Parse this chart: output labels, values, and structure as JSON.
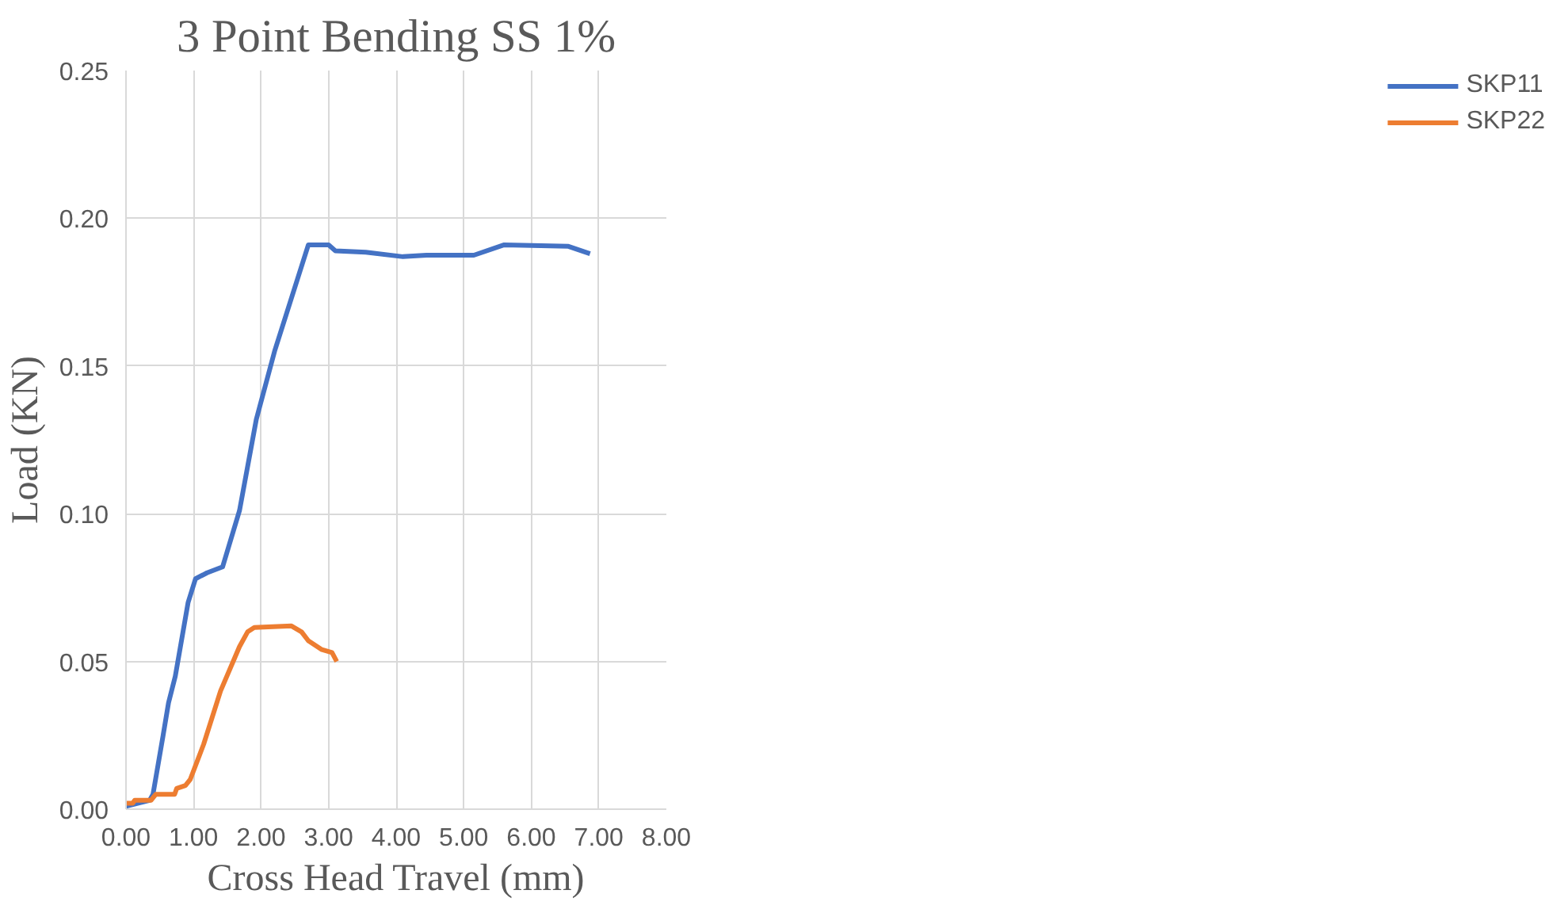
{
  "chart_data": {
    "type": "line",
    "title": "3 Point Bending SS 1%",
    "xlabel": "Cross Head Travel (mm)",
    "ylabel": "Load (KN)",
    "xlim": [
      0,
      8
    ],
    "ylim": [
      0,
      0.25
    ],
    "xticks": [
      {
        "value": 0,
        "label": "0.00"
      },
      {
        "value": 1,
        "label": "1.00"
      },
      {
        "value": 2,
        "label": "2.00"
      },
      {
        "value": 3,
        "label": "3.00"
      },
      {
        "value": 4,
        "label": "4.00"
      },
      {
        "value": 5,
        "label": "5.00"
      },
      {
        "value": 6,
        "label": "6.00"
      },
      {
        "value": 7,
        "label": "7.00"
      },
      {
        "value": 8,
        "label": "8.00"
      }
    ],
    "yticks": [
      {
        "value": 0,
        "label": "0.00"
      },
      {
        "value": 0.05,
        "label": "0.05"
      },
      {
        "value": 0.1,
        "label": "0.10"
      },
      {
        "value": 0.15,
        "label": "0.15"
      },
      {
        "value": 0.2,
        "label": "0.20"
      },
      {
        "value": 0.25,
        "label": "0.25"
      }
    ],
    "grid": true,
    "legend": "right",
    "marker": "none",
    "line_style": "solid",
    "series": [
      {
        "name": "SKP11",
        "color": "#4472c4",
        "x": [
          0,
          0.35,
          0.4,
          0.55,
          0.63,
          0.73,
          0.92,
          1.03,
          1.2,
          1.43,
          1.68,
          1.93,
          2.2,
          2.7,
          3.0,
          3.1,
          3.55,
          4.1,
          4.45,
          5.15,
          5.6,
          6.55,
          6.87
        ],
        "values": [
          0.001,
          0.003,
          0.005,
          0.025,
          0.036,
          0.045,
          0.07,
          0.078,
          0.08,
          0.082,
          0.101,
          0.132,
          0.155,
          0.191,
          0.191,
          0.189,
          0.1885,
          0.187,
          0.1875,
          0.1875,
          0.191,
          0.1905,
          0.188
        ]
      },
      {
        "name": "SKP22",
        "color": "#ed7d31",
        "x": [
          0,
          0.1,
          0.13,
          0.37,
          0.44,
          0.72,
          0.75,
          0.88,
          0.95,
          1.15,
          1.4,
          1.68,
          1.8,
          1.9,
          2.45,
          2.6,
          2.7,
          2.9,
          3.05,
          3.12
        ],
        "values": [
          0.002,
          0.002,
          0.003,
          0.003,
          0.005,
          0.005,
          0.007,
          0.008,
          0.01,
          0.022,
          0.04,
          0.055,
          0.06,
          0.0615,
          0.062,
          0.06,
          0.057,
          0.054,
          0.053,
          0.05
        ]
      }
    ]
  }
}
